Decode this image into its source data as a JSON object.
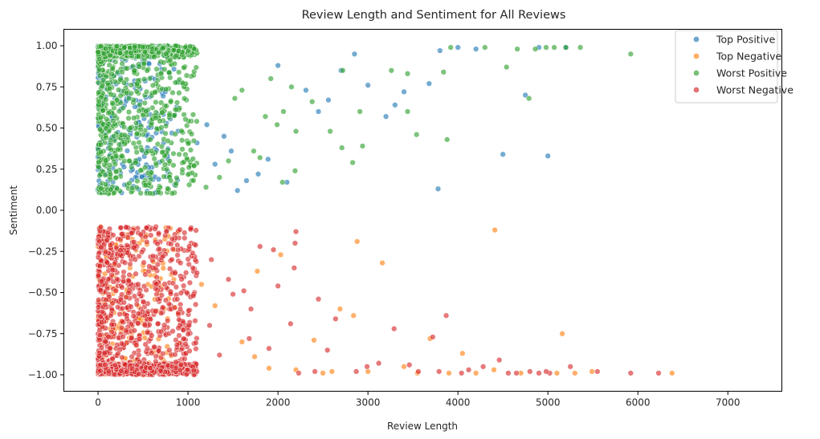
{
  "chart_data": {
    "type": "scatter",
    "title": "Review Length and Sentiment for All Reviews",
    "xlabel": "Review Length",
    "ylabel": "Sentiment",
    "xlim": [
      -380,
      7600
    ],
    "ylim": [
      -1.1,
      1.1
    ],
    "x_ticks": [
      0,
      1000,
      2000,
      3000,
      4000,
      5000,
      6000,
      7000
    ],
    "x_tick_labels": [
      "0",
      "1000",
      "2000",
      "3000",
      "4000",
      "5000",
      "6000",
      "7000"
    ],
    "y_ticks": [
      1.0,
      0.75,
      0.5,
      0.25,
      0.0,
      -0.25,
      -0.5,
      -0.75,
      -1.0
    ],
    "y_tick_labels": [
      "1.00",
      "0.75",
      "0.50",
      "0.25",
      "0.00",
      "−0.25",
      "−0.50",
      "−0.75",
      "−1.00"
    ],
    "grid": false,
    "legend_position": "top-right",
    "series": [
      {
        "name": "Top Positive",
        "color": "#1f77b4",
        "points": [
          [
            2100,
            0.17
          ],
          [
            3780,
            0.13
          ],
          [
            4500,
            0.34
          ],
          [
            5000,
            0.33
          ],
          [
            3800,
            0.97
          ],
          [
            3000,
            0.76
          ],
          [
            3200,
            0.57
          ],
          [
            2560,
            0.67
          ],
          [
            2310,
            0.73
          ],
          [
            3680,
            0.77
          ],
          [
            2850,
            0.95
          ],
          [
            1300,
            0.28
          ],
          [
            1550,
            0.12
          ],
          [
            1780,
            0.22
          ],
          [
            1400,
            0.45
          ],
          [
            4200,
            0.98
          ],
          [
            5200,
            0.99
          ],
          [
            4750,
            0.7
          ],
          [
            3400,
            0.72
          ],
          [
            2700,
            0.85
          ],
          [
            1100,
            0.41
          ],
          [
            1650,
            0.18
          ],
          [
            2000,
            0.88
          ],
          [
            4900,
            0.99
          ],
          [
            3300,
            0.64
          ],
          [
            1210,
            0.52
          ],
          [
            1480,
            0.36
          ],
          [
            2450,
            0.6
          ],
          [
            1890,
            0.31
          ],
          [
            4000,
            0.99
          ]
        ]
      },
      {
        "name": "Top Negative",
        "color": "#ff7f0e",
        "points": [
          [
            2880,
            -0.19
          ],
          [
            4410,
            -0.12
          ],
          [
            3160,
            -0.32
          ],
          [
            2030,
            -0.27
          ],
          [
            1770,
            -0.37
          ],
          [
            3690,
            -0.78
          ],
          [
            2690,
            -0.6
          ],
          [
            4050,
            -0.87
          ],
          [
            5160,
            -0.75
          ],
          [
            6380,
            -0.99
          ],
          [
            5490,
            -0.98
          ],
          [
            4700,
            -0.99
          ],
          [
            5300,
            -0.99
          ],
          [
            4200,
            -0.99
          ],
          [
            3900,
            -0.99
          ],
          [
            2400,
            -0.79
          ],
          [
            2840,
            -0.64
          ],
          [
            3400,
            -0.95
          ],
          [
            1900,
            -0.96
          ],
          [
            2500,
            -0.99
          ],
          [
            2200,
            -0.97
          ],
          [
            1600,
            -0.8
          ],
          [
            1300,
            -0.58
          ],
          [
            1150,
            -0.45
          ],
          [
            3000,
            -0.98
          ],
          [
            2600,
            -0.98
          ],
          [
            4400,
            -0.97
          ],
          [
            1740,
            -0.89
          ],
          [
            3550,
            -0.99
          ],
          [
            5100,
            -0.99
          ]
        ]
      },
      {
        "name": "Worst Positive",
        "color": "#2ca02c",
        "points": [
          [
            5920,
            0.95
          ],
          [
            3880,
            0.43
          ],
          [
            4790,
            0.68
          ],
          [
            2710,
            0.38
          ],
          [
            2190,
            0.24
          ],
          [
            2050,
            0.17
          ],
          [
            2830,
            0.29
          ],
          [
            3540,
            0.46
          ],
          [
            2910,
            0.6
          ],
          [
            3440,
            0.6
          ],
          [
            2580,
            0.48
          ],
          [
            2060,
            0.6
          ],
          [
            2200,
            0.48
          ],
          [
            3260,
            0.85
          ],
          [
            3440,
            0.83
          ],
          [
            3840,
            0.84
          ],
          [
            4540,
            0.87
          ],
          [
            4660,
            0.98
          ],
          [
            5360,
            0.99
          ],
          [
            5200,
            0.99
          ],
          [
            4980,
            0.99
          ],
          [
            5070,
            0.99
          ],
          [
            4860,
            0.98
          ],
          [
            4300,
            0.99
          ],
          [
            3920,
            0.99
          ],
          [
            2380,
            0.66
          ],
          [
            2720,
            0.85
          ],
          [
            2940,
            0.39
          ],
          [
            1990,
            0.52
          ],
          [
            1730,
            0.36
          ],
          [
            1860,
            0.57
          ],
          [
            1600,
            0.73
          ],
          [
            1450,
            0.3
          ],
          [
            1350,
            0.2
          ],
          [
            1200,
            0.14
          ],
          [
            1800,
            0.32
          ],
          [
            2150,
            0.75
          ],
          [
            1920,
            0.8
          ],
          [
            1010,
            0.26
          ],
          [
            1520,
            0.68
          ]
        ]
      },
      {
        "name": "Worst Negative",
        "color": "#d62728",
        "points": [
          [
            2200,
            -0.13
          ],
          [
            2190,
            -0.2
          ],
          [
            1800,
            -0.22
          ],
          [
            1950,
            -0.24
          ],
          [
            2000,
            -0.46
          ],
          [
            2180,
            -0.35
          ],
          [
            2450,
            -0.54
          ],
          [
            2640,
            -0.66
          ],
          [
            3290,
            -0.72
          ],
          [
            3870,
            -0.64
          ],
          [
            3720,
            -0.77
          ],
          [
            2410,
            -0.98
          ],
          [
            5920,
            -0.99
          ],
          [
            6230,
            -0.99
          ],
          [
            4460,
            -0.91
          ],
          [
            4900,
            -0.99
          ],
          [
            5020,
            -0.99
          ],
          [
            4800,
            -0.98
          ],
          [
            4980,
            -0.98
          ],
          [
            5250,
            -0.95
          ],
          [
            4560,
            -0.99
          ],
          [
            4280,
            -0.95
          ],
          [
            4040,
            -0.99
          ],
          [
            3790,
            -0.98
          ],
          [
            3560,
            -0.98
          ],
          [
            2990,
            -0.95
          ],
          [
            2870,
            -0.98
          ],
          [
            2230,
            -0.99
          ],
          [
            1700,
            -0.6
          ],
          [
            1500,
            -0.51
          ],
          [
            1680,
            -0.78
          ],
          [
            1260,
            -0.3
          ],
          [
            1240,
            -0.7
          ],
          [
            1100,
            -0.38
          ],
          [
            1350,
            -0.88
          ],
          [
            1450,
            -0.42
          ],
          [
            1900,
            -0.84
          ],
          [
            1620,
            -0.49
          ],
          [
            2140,
            -0.69
          ],
          [
            2550,
            -0.85
          ],
          [
            3120,
            -0.93
          ],
          [
            3460,
            -0.94
          ],
          [
            4120,
            -0.97
          ],
          [
            4650,
            -0.99
          ],
          [
            5550,
            -0.98
          ]
        ]
      }
    ]
  }
}
